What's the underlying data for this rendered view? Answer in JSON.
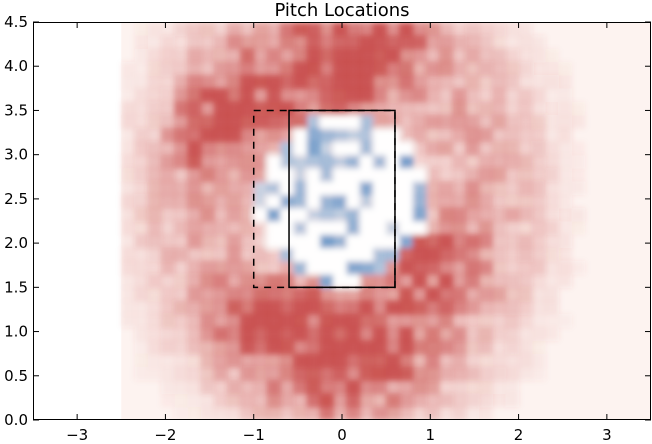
{
  "chart_data": {
    "type": "heatmap",
    "title": "Pitch Locations",
    "xlabel": "",
    "ylabel": "",
    "xlim": [
      -3.5,
      3.5
    ],
    "ylim": [
      0.0,
      4.5
    ],
    "x_ticks": [
      -3,
      -2,
      -1,
      0,
      1,
      2,
      3
    ],
    "x_tick_labels": [
      "−3",
      "−2",
      "−1",
      "0",
      "1",
      "2",
      "3"
    ],
    "y_ticks": [
      0.0,
      0.5,
      1.0,
      1.5,
      2.0,
      2.5,
      3.0,
      3.5,
      4.0,
      4.5
    ],
    "y_tick_labels": [
      "0.0",
      "0.5",
      "1.0",
      "1.5",
      "2.0",
      "2.5",
      "3.0",
      "3.5",
      "4.0",
      "4.5"
    ],
    "grid": false,
    "colormap": "diverging red-white-blue",
    "heatmap_extent": {
      "x": [
        -2.5,
        3.5
      ],
      "y": [
        0.0,
        4.5
      ]
    },
    "hot_regions": [
      {
        "x": 0.0,
        "y": 0.9,
        "intensity": 0.95,
        "spread": 0.75
      },
      {
        "x": -0.4,
        "y": 3.6,
        "intensity": 0.7,
        "spread": 0.8
      },
      {
        "x": 0.9,
        "y": 1.8,
        "intensity": 0.6,
        "spread": 0.55
      },
      {
        "x": -1.4,
        "y": 3.3,
        "intensity": 0.6,
        "spread": 0.5
      },
      {
        "x": 0.4,
        "y": 4.2,
        "intensity": 0.5,
        "spread": 0.6
      },
      {
        "x": -1.0,
        "y": 1.1,
        "intensity": 0.45,
        "spread": 0.5
      }
    ],
    "cold_region": {
      "x": 0.0,
      "y": 2.5,
      "rx": 0.95,
      "ry": 0.95
    },
    "strike_zone_solid": {
      "x": [
        -0.6,
        0.6
      ],
      "y": [
        1.5,
        3.5
      ]
    },
    "strike_zone_dashed": {
      "x": [
        -1.0,
        0.6
      ],
      "y": [
        1.5,
        3.5
      ]
    }
  }
}
